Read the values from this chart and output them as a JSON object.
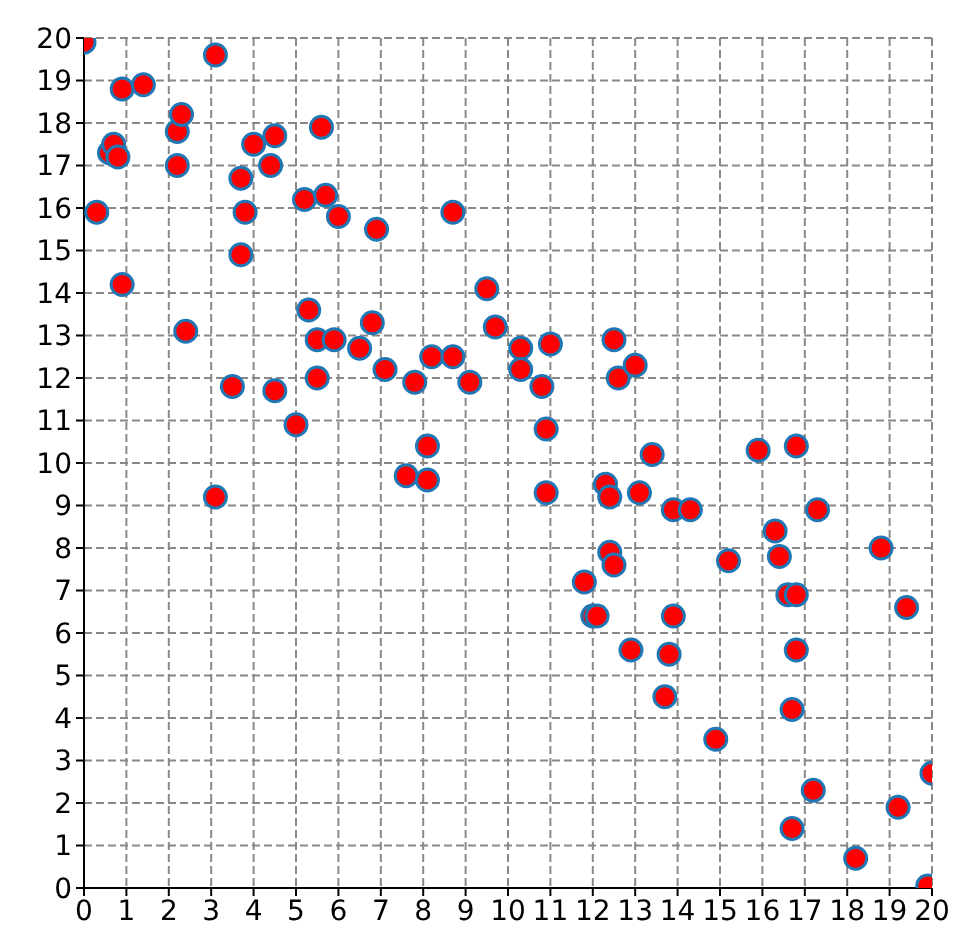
{
  "chart_data": {
    "type": "scatter",
    "x": [
      0,
      0.3,
      0.6,
      0.7,
      0.8,
      0.9,
      0.9,
      1.4,
      2.2,
      2.3,
      2.2,
      2.4,
      3.1,
      3.1,
      3.5,
      3.7,
      3.7,
      3.8,
      4.0,
      4.4,
      4.5,
      4.5,
      5.0,
      5.2,
      5.3,
      5.5,
      5.5,
      5.6,
      5.7,
      5.9,
      6.0,
      6.5,
      6.8,
      6.9,
      7.1,
      7.6,
      7.8,
      8.1,
      8.1,
      8.2,
      8.7,
      8.7,
      9.1,
      9.5,
      9.7,
      10.3,
      10.3,
      10.8,
      10.9,
      10.9,
      11.0,
      11.8,
      12.0,
      12.1,
      12.3,
      12.4,
      12.4,
      12.5,
      12.5,
      12.6,
      12.9,
      13.0,
      13.1,
      13.4,
      13.7,
      13.8,
      13.9,
      13.9,
      14.3,
      14.9,
      15.2,
      15.9,
      16.3,
      16.4,
      16.6,
      16.7,
      16.7,
      16.8,
      16.8,
      16.8,
      17.2,
      17.3,
      18.2,
      18.8,
      19.2,
      19.4,
      19.9,
      20.0
    ],
    "series": [
      {
        "color": "#ff0000",
        "values": [
          19.9,
          15.9,
          17.3,
          17.5,
          17.2,
          18.8,
          14.2,
          18.9,
          17.8,
          18.2,
          17.0,
          13.1,
          19.6,
          9.2,
          11.8,
          16.7,
          14.9,
          15.9,
          17.5,
          17.0,
          17.7,
          11.7,
          10.9,
          16.2,
          13.6,
          12.9,
          12.0,
          17.9,
          16.3,
          12.9,
          15.8,
          12.7,
          13.3,
          15.5,
          12.2,
          9.7,
          11.9,
          10.4,
          9.6,
          12.5,
          12.5,
          15.9,
          11.9,
          14.1,
          13.2,
          12.7,
          12.2,
          11.8,
          10.8,
          9.3,
          12.8,
          7.2,
          6.4,
          6.4,
          9.5,
          9.2,
          7.9,
          7.6,
          12.9,
          12.0,
          5.6,
          12.3,
          9.3,
          10.2,
          4.5,
          5.5,
          8.9,
          6.4,
          8.9,
          3.5,
          7.7,
          10.3,
          8.4,
          7.8,
          6.9,
          1.4,
          4.2,
          6.9,
          10.4,
          5.6,
          2.3,
          8.9,
          0.7,
          8.0,
          1.9,
          6.6,
          0.05,
          2.7
        ]
      }
    ],
    "xlim": [
      0,
      20
    ],
    "ylim": [
      0,
      20
    ],
    "xticks": [
      0,
      1,
      2,
      3,
      4,
      5,
      6,
      7,
      8,
      9,
      10,
      11,
      12,
      13,
      14,
      15,
      16,
      17,
      18,
      19,
      20
    ],
    "yticks": [
      0,
      1,
      2,
      3,
      4,
      5,
      6,
      7,
      8,
      9,
      10,
      11,
      12,
      13,
      14,
      15,
      16,
      17,
      18,
      19,
      20
    ],
    "grid": true,
    "marker": "circle"
  }
}
